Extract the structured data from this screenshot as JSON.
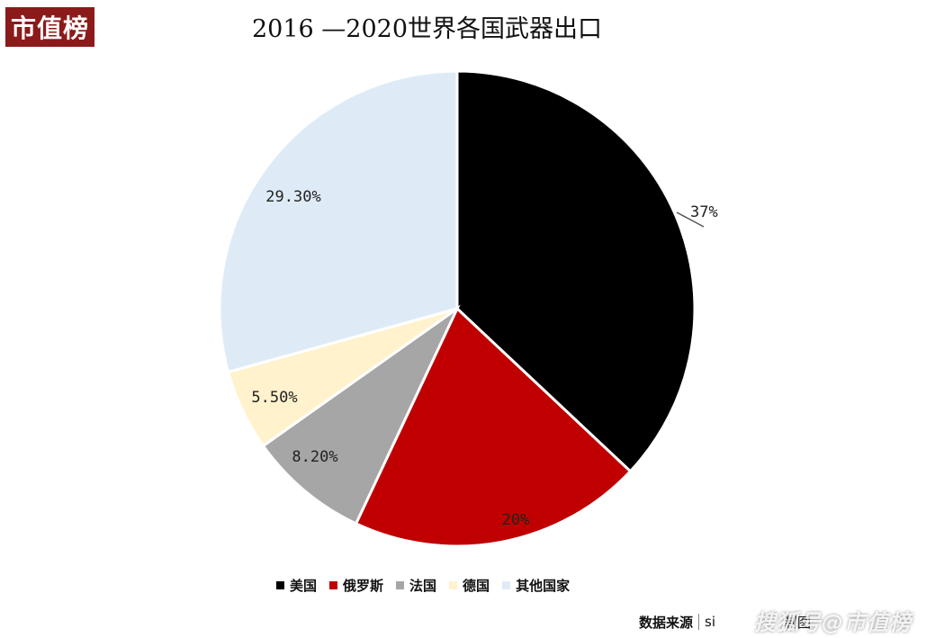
{
  "logo": {
    "text": "市值榜"
  },
  "chart_data": {
    "type": "pie",
    "title": "2016 —2020世界各国武器出口",
    "slices": [
      {
        "name": "美国",
        "value": 37,
        "label": "37%",
        "color": "#000000"
      },
      {
        "name": "俄罗斯",
        "value": 20,
        "label": "20%",
        "color": "#c00000"
      },
      {
        "name": "法国",
        "value": 8.2,
        "label": "8.20%",
        "color": "#a6a6a6"
      },
      {
        "name": "德国",
        "value": 5.5,
        "label": "5.50%",
        "color": "#fff2cc"
      },
      {
        "name": "其他国家",
        "value": 29.3,
        "label": "29.30%",
        "color": "#deebf7"
      }
    ],
    "legend_position": "bottom"
  },
  "footer": {
    "source_label": "数据来源",
    "source_value": "si",
    "maker_text": "制图",
    "watermark": "搜狐号@市值榜"
  }
}
